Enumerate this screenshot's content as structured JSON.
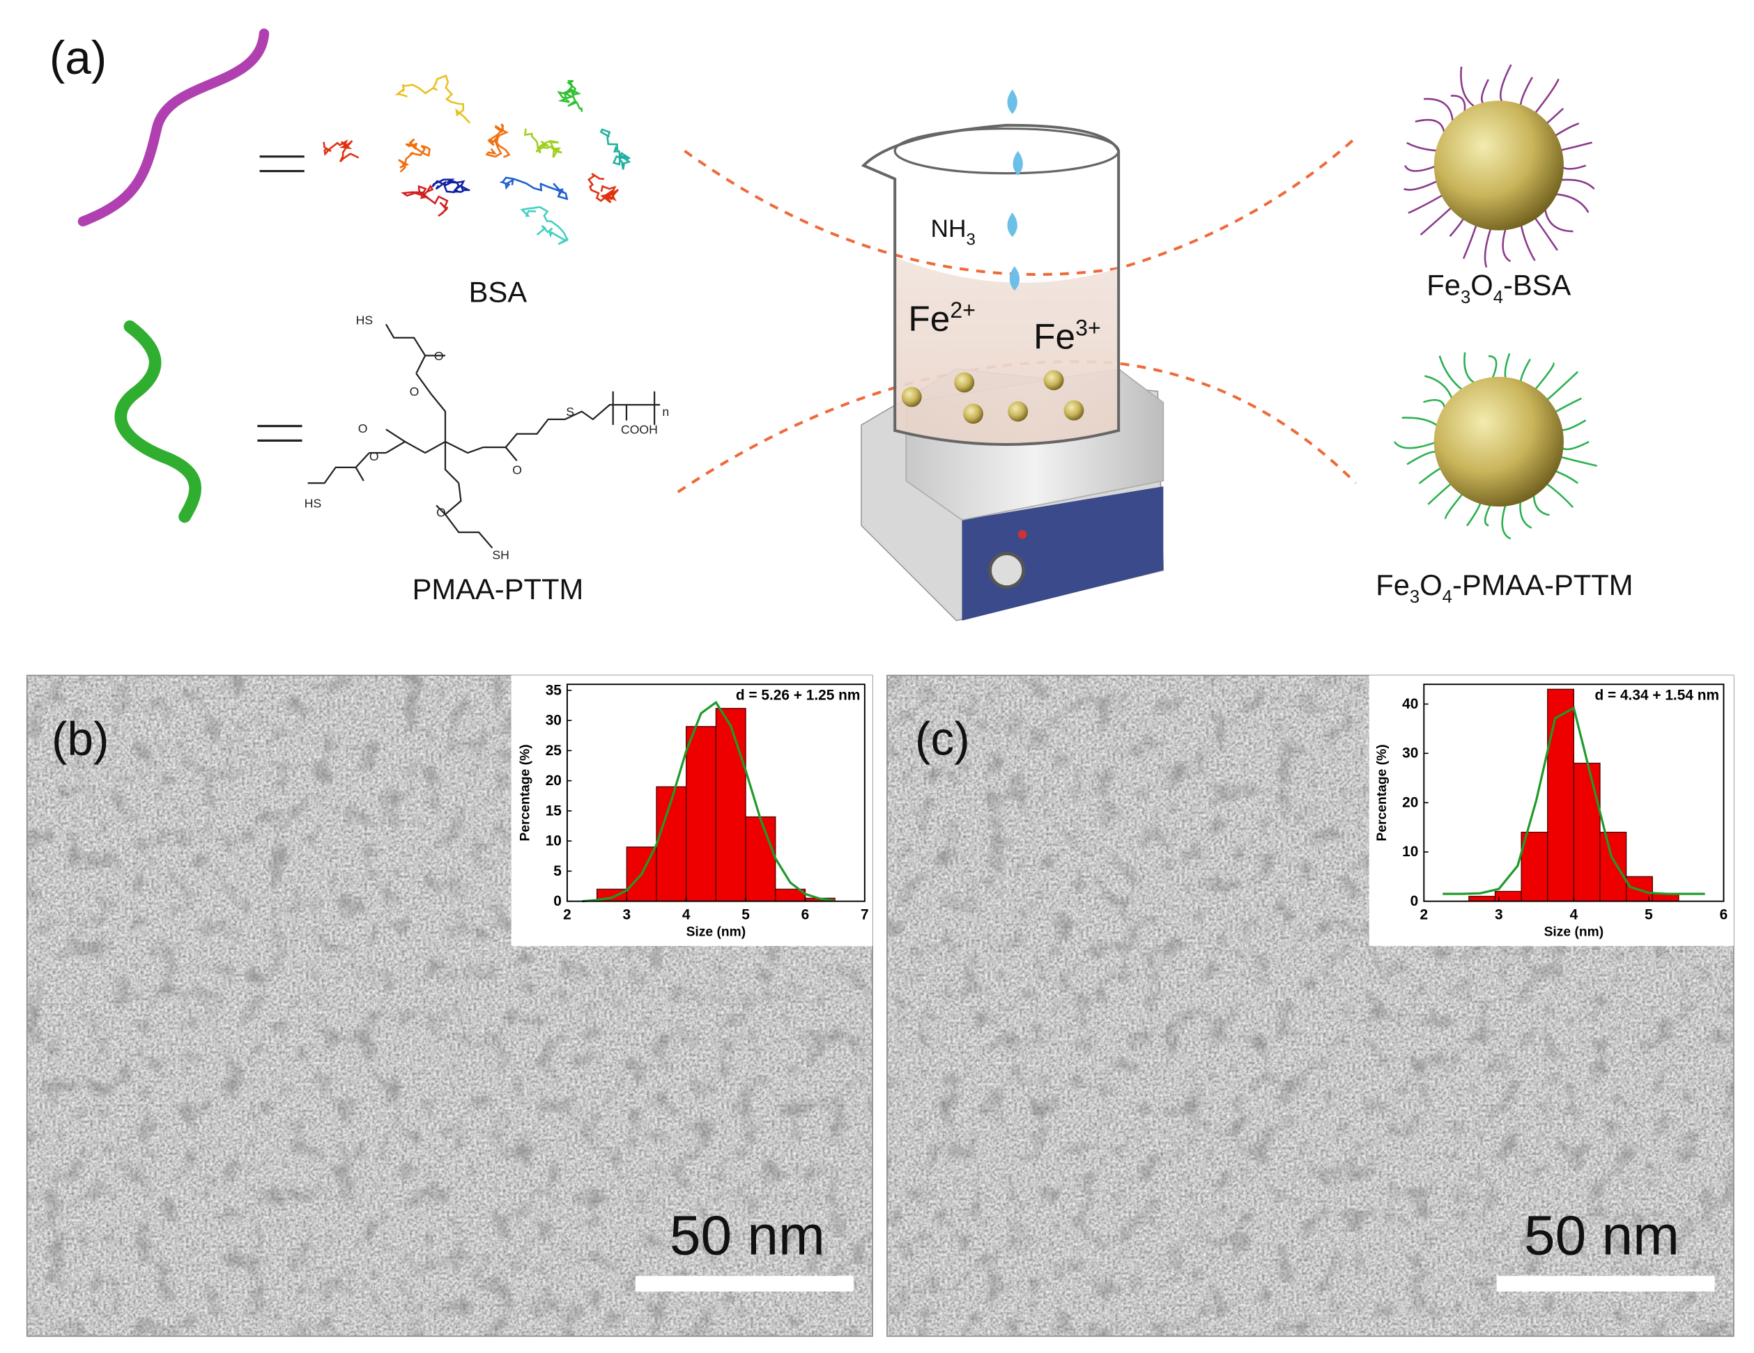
{
  "panel_a": {
    "label": "(a)",
    "bsa": "BSA",
    "pmaa_pttm": "PMAA-PTTM",
    "nh3": [
      "NH",
      "3"
    ],
    "fe2": [
      "Fe",
      "2+"
    ],
    "fe3": [
      "Fe",
      "3+"
    ],
    "fe3o4_bsa": [
      "Fe",
      "3",
      "O",
      "4",
      "-BSA"
    ],
    "fe3o4_pmaa": [
      "Fe",
      "3",
      "O",
      "4",
      "-PMAA-PTTM"
    ],
    "chem": [
      "HS",
      "O",
      "O",
      "S",
      "n",
      "COOH",
      "O",
      "O",
      "O",
      "HS",
      "O",
      "SH"
    ]
  },
  "panel_b": {
    "label": "(b)",
    "scale_bar": "50 nm"
  },
  "panel_c": {
    "label": "(c)",
    "scale_bar": "50 nm"
  },
  "chart_data": [
    {
      "type": "histogram",
      "annotation": "d = 5.26 + 1.25 nm",
      "x_label": "Size (nm)",
      "y_label": "Percentage (%)",
      "bins": [
        2.5,
        3,
        3.5,
        4,
        4.5,
        5,
        5.5,
        6,
        6.5
      ],
      "values": [
        2,
        9,
        19,
        29,
        32,
        14,
        2,
        0.5
      ],
      "color": "#ee0000",
      "xlim": [
        2,
        7
      ],
      "ylim": [
        0,
        36
      ],
      "xticks": [
        2,
        3,
        4,
        5,
        6,
        7
      ],
      "yticks": [
        0,
        5,
        10,
        15,
        20,
        25,
        30,
        35
      ],
      "fit": {
        "x": [
          2.25,
          2.5,
          2.75,
          3,
          3.25,
          3.5,
          3.75,
          4,
          4.25,
          4.5,
          4.75,
          5,
          5.25,
          5.5,
          5.75,
          6,
          6.25,
          6.5
        ],
        "values": [
          0,
          0.2,
          0.6,
          1.8,
          4.5,
          9.4,
          16.7,
          24.9,
          31.2,
          33,
          29.1,
          21.7,
          13.6,
          7.1,
          3.1,
          1.2,
          0.4,
          0.1
        ],
        "color": "#1f9a2a"
      }
    },
    {
      "type": "histogram",
      "annotation": "d = 4.34 + 1.54 nm",
      "x_label": "Size (nm)",
      "y_label": "Percentage (%)",
      "bins": [
        2.6,
        2.95,
        3.3,
        3.65,
        4,
        4.35,
        4.7,
        5.05,
        5.4
      ],
      "values": [
        1,
        2,
        14,
        43,
        28,
        14,
        5,
        1.5
      ],
      "color": "#ee0000",
      "xlim": [
        2,
        6
      ],
      "ylim": [
        0,
        44
      ],
      "xticks": [
        2,
        3,
        4,
        5,
        6
      ],
      "yticks": [
        0,
        10,
        20,
        30,
        40
      ],
      "fit": {
        "x": [
          2.25,
          2.5,
          2.75,
          3,
          3.25,
          3.5,
          3.75,
          4,
          4.25,
          4.5,
          4.75,
          5,
          5.25,
          5.5,
          5.75
        ],
        "values": [
          1.5,
          1.5,
          1.6,
          2.5,
          7.2,
          20.5,
          37.1,
          39.2,
          24,
          9.1,
          2.9,
          1.7,
          1.5,
          1.5,
          1.5
        ],
        "color": "#1f9a2a"
      }
    }
  ]
}
